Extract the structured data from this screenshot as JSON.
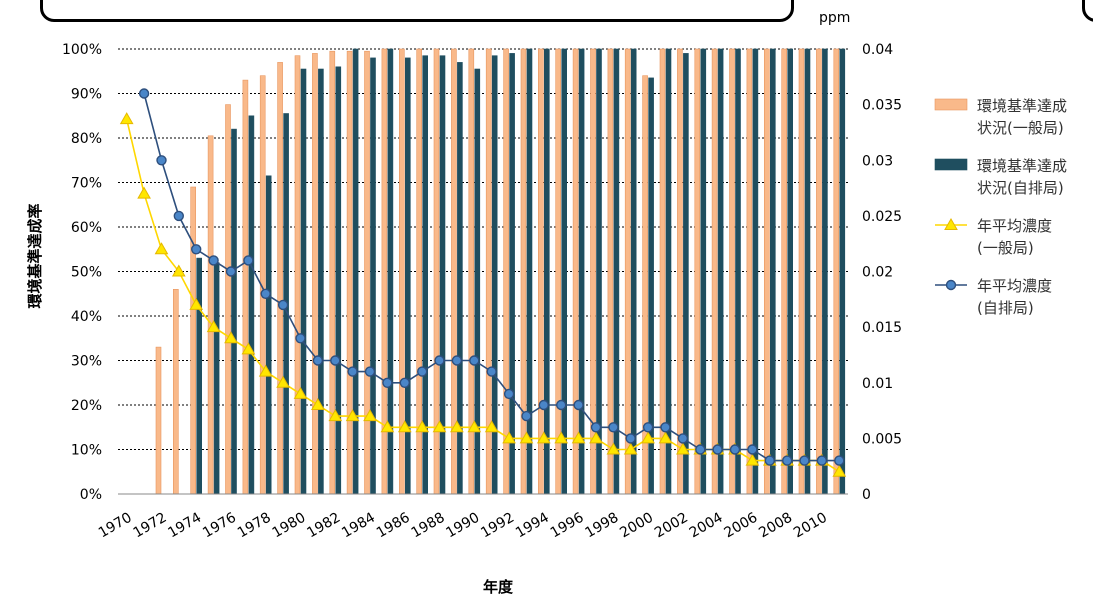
{
  "chart_data": {
    "type": "bar+line",
    "y_left_label": "環境基準達成率",
    "y_right_unit": "ppm",
    "x_label": "年度",
    "ylim_left": [
      0,
      100
    ],
    "ylim_right": [
      0,
      0.04
    ],
    "yticks_left": [
      "0%",
      "10%",
      "20%",
      "30%",
      "40%",
      "50%",
      "60%",
      "70%",
      "80%",
      "90%",
      "100%"
    ],
    "yticks_right": [
      "0",
      "0.005",
      "0.01",
      "0.015",
      "0.02",
      "0.025",
      "0.03",
      "0.035",
      "0.04"
    ],
    "years": [
      1970,
      1971,
      1972,
      1973,
      1974,
      1975,
      1976,
      1977,
      1978,
      1979,
      1980,
      1981,
      1982,
      1983,
      1984,
      1985,
      1986,
      1987,
      1988,
      1989,
      1990,
      1991,
      1992,
      1993,
      1994,
      1995,
      1996,
      1997,
      1998,
      1999,
      2000,
      2001,
      2002,
      2003,
      2004,
      2005,
      2006,
      2007,
      2008,
      2009,
      2010,
      2011
    ],
    "year_tick_labels": [
      "1970",
      "1972",
      "1974",
      "1976",
      "1978",
      "1980",
      "1982",
      "1984",
      "1986",
      "1988",
      "1990",
      "1992",
      "1994",
      "1996",
      "1998",
      "2000",
      "2002",
      "2004",
      "2006",
      "2008",
      "2010"
    ],
    "grid": true,
    "legend_position": "right",
    "series": [
      {
        "name": "環境基準達成状況(一般局)",
        "legend_lines": [
          "環境基準達成",
          "状況(一般局)"
        ],
        "kind": "bar",
        "axis": "left",
        "color": "#F9B98A",
        "stroke": "#E8965F",
        "values": [
          null,
          null,
          33,
          46,
          69,
          80.5,
          87.5,
          93,
          94,
          97,
          98.5,
          99,
          99.5,
          99.5,
          99.5,
          100,
          100,
          100,
          100,
          100,
          100,
          100,
          100,
          100,
          100,
          100,
          100,
          100,
          100,
          100,
          94,
          100,
          100,
          100,
          100,
          100,
          100,
          100,
          100,
          100,
          100,
          100
        ]
      },
      {
        "name": "環境基準達成状況(自排局)",
        "legend_lines": [
          "環境基準達成",
          "状況(自排局)"
        ],
        "kind": "bar",
        "axis": "left",
        "color": "#1F4E5F",
        "stroke": "#1F4E5F",
        "values": [
          null,
          null,
          null,
          null,
          53,
          52,
          82,
          85,
          71.5,
          85.5,
          95.5,
          95.5,
          96,
          100,
          98,
          100,
          98,
          98.5,
          98.5,
          97,
          95.5,
          98.5,
          99,
          100,
          100,
          100,
          100,
          100,
          100,
          100,
          93.5,
          100,
          99,
          100,
          100,
          100,
          100,
          100,
          100,
          100,
          100,
          100
        ]
      },
      {
        "name": "年平均濃度(一般局)",
        "legend_lines": [
          "年平均濃度",
          "(一般局)"
        ],
        "kind": "line",
        "marker": "triangle",
        "axis": "right",
        "color": "#FFD700",
        "marker_fill": "#FFE600",
        "marker_stroke": "#E5B800",
        "values": [
          0.0337,
          0.027,
          0.022,
          0.02,
          0.017,
          0.015,
          0.014,
          0.013,
          0.011,
          0.01,
          0.009,
          0.008,
          0.007,
          0.007,
          0.007,
          0.006,
          0.006,
          0.006,
          0.006,
          0.006,
          0.006,
          0.006,
          0.005,
          0.005,
          0.005,
          0.005,
          0.005,
          0.005,
          0.004,
          0.004,
          0.005,
          0.005,
          0.004,
          0.004,
          0.004,
          0.004,
          0.003,
          0.003,
          0.003,
          0.003,
          0.003,
          0.002
        ]
      },
      {
        "name": "年平均濃度(自排局)",
        "legend_lines": [
          "年平均濃度",
          "(自排局)"
        ],
        "kind": "line",
        "marker": "circle",
        "axis": "right",
        "color": "#2E4F7D",
        "marker_fill": "#4A86C8",
        "marker_stroke": "#2E4F7D",
        "values": [
          null,
          0.036,
          0.03,
          0.025,
          0.022,
          0.021,
          0.02,
          0.021,
          0.018,
          0.017,
          0.014,
          0.012,
          0.012,
          0.011,
          0.011,
          0.01,
          0.01,
          0.011,
          0.012,
          0.012,
          0.012,
          0.011,
          0.009,
          0.007,
          0.008,
          0.008,
          0.008,
          0.006,
          0.006,
          0.005,
          0.006,
          0.006,
          0.005,
          0.004,
          0.004,
          0.004,
          0.004,
          0.003,
          0.003,
          0.003,
          0.003,
          0.003
        ]
      }
    ]
  }
}
